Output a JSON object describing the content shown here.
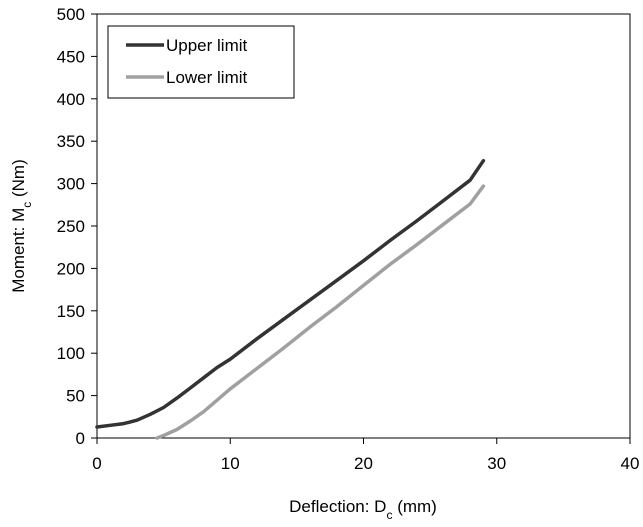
{
  "chart_data": {
    "type": "line",
    "title": "",
    "xlabel": {
      "main": "Deflection: D",
      "sub": "c",
      "unit": " (mm)"
    },
    "ylabel": {
      "main": "Moment: M",
      "sub": "c",
      "unit": " (Nm)"
    },
    "xlim": [
      0,
      40
    ],
    "ylim": [
      0,
      500
    ],
    "xticks": [
      0,
      10,
      20,
      30,
      40
    ],
    "yticks": [
      0,
      50,
      100,
      150,
      200,
      250,
      300,
      350,
      400,
      450,
      500
    ],
    "grid": false,
    "legend_position": "top-left",
    "series": [
      {
        "name": "Upper limit",
        "color": "#333333",
        "x": [
          0,
          1,
          2,
          3,
          4,
          5,
          6,
          7,
          8,
          9,
          10,
          12,
          14,
          16,
          18,
          20,
          22,
          24,
          26,
          28,
          29
        ],
        "y": [
          13,
          15,
          17,
          21,
          28,
          36,
          47,
          59,
          71,
          83,
          93,
          117,
          140,
          163,
          186,
          209,
          233,
          256,
          280,
          304,
          327
        ]
      },
      {
        "name": "Lower limit",
        "color": "#a0a0a0",
        "x": [
          4.5,
          5,
          6,
          7,
          8,
          10,
          12,
          14,
          16,
          18,
          20,
          22,
          24,
          26,
          28,
          29
        ],
        "y": [
          0,
          3,
          10,
          20,
          31,
          58,
          82,
          106,
          131,
          155,
          180,
          205,
          228,
          252,
          276,
          297
        ]
      }
    ]
  }
}
